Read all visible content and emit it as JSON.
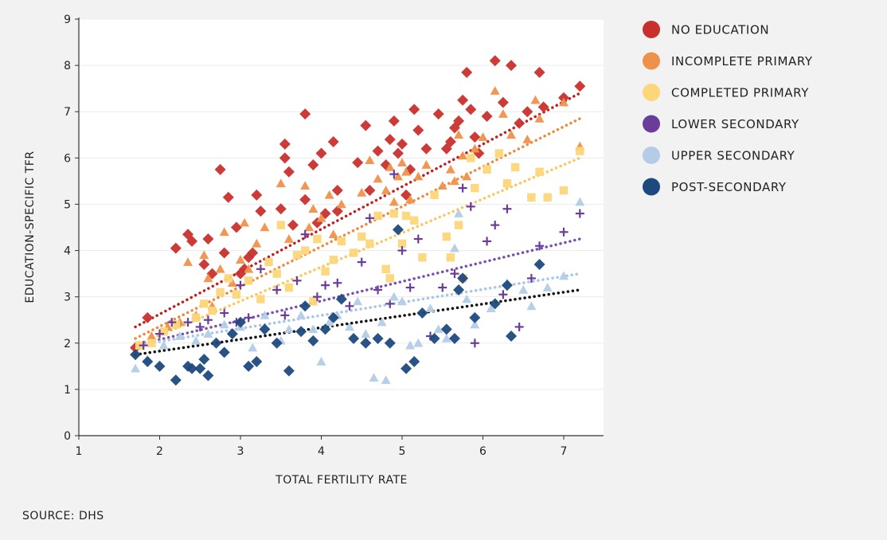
{
  "source_label": "SOURCE: DHS",
  "chart_data": {
    "type": "scatter",
    "title": "",
    "xlabel": "TOTAL FERTILITY RATE",
    "ylabel": "EDUCATION-SPECIFIC TFR",
    "xlim": [
      1,
      7.5
    ],
    "ylim": [
      0,
      9
    ],
    "xticks": [
      1,
      2,
      3,
      4,
      5,
      6,
      7
    ],
    "yticks": [
      0,
      1,
      2,
      3,
      4,
      5,
      6,
      7,
      8,
      9
    ],
    "legend_position": "right",
    "series": [
      {
        "name": "NO EDUCATION",
        "color": "#c9302c",
        "marker": "diamond",
        "trend": [
          [
            1.7,
            2.35
          ],
          [
            7.2,
            7.4
          ]
        ],
        "points": [
          [
            1.7,
            1.9
          ],
          [
            1.85,
            2.55
          ],
          [
            2.2,
            4.05
          ],
          [
            2.35,
            4.35
          ],
          [
            2.4,
            4.2
          ],
          [
            2.55,
            3.7
          ],
          [
            2.6,
            4.25
          ],
          [
            2.65,
            3.5
          ],
          [
            2.75,
            5.75
          ],
          [
            2.8,
            3.95
          ],
          [
            2.85,
            5.15
          ],
          [
            2.95,
            4.5
          ],
          [
            3.0,
            3.5
          ],
          [
            3.05,
            3.6
          ],
          [
            3.1,
            3.85
          ],
          [
            3.15,
            3.95
          ],
          [
            3.2,
            5.2
          ],
          [
            3.25,
            4.85
          ],
          [
            3.5,
            4.9
          ],
          [
            3.55,
            6.3
          ],
          [
            3.6,
            5.7
          ],
          [
            3.55,
            6.0
          ],
          [
            3.65,
            4.55
          ],
          [
            3.8,
            5.1
          ],
          [
            3.8,
            6.95
          ],
          [
            3.9,
            5.85
          ],
          [
            3.95,
            4.6
          ],
          [
            4.0,
            6.1
          ],
          [
            4.05,
            4.8
          ],
          [
            4.15,
            6.35
          ],
          [
            4.2,
            5.3
          ],
          [
            4.2,
            4.85
          ],
          [
            4.45,
            5.9
          ],
          [
            4.55,
            6.7
          ],
          [
            4.6,
            5.3
          ],
          [
            4.7,
            6.15
          ],
          [
            4.8,
            5.85
          ],
          [
            4.85,
            6.4
          ],
          [
            4.9,
            6.8
          ],
          [
            4.95,
            6.1
          ],
          [
            5.0,
            6.3
          ],
          [
            5.05,
            5.2
          ],
          [
            5.1,
            5.75
          ],
          [
            5.15,
            7.05
          ],
          [
            5.2,
            6.6
          ],
          [
            5.3,
            6.2
          ],
          [
            5.45,
            6.95
          ],
          [
            5.55,
            6.2
          ],
          [
            5.6,
            6.35
          ],
          [
            5.65,
            6.65
          ],
          [
            5.7,
            6.8
          ],
          [
            5.75,
            7.25
          ],
          [
            5.8,
            7.85
          ],
          [
            5.85,
            7.05
          ],
          [
            5.9,
            6.45
          ],
          [
            5.95,
            6.1
          ],
          [
            6.05,
            6.9
          ],
          [
            6.15,
            8.1
          ],
          [
            6.25,
            7.2
          ],
          [
            6.35,
            8.0
          ],
          [
            6.45,
            6.75
          ],
          [
            6.55,
            7.0
          ],
          [
            6.7,
            7.85
          ],
          [
            6.75,
            7.1
          ],
          [
            7.0,
            7.3
          ],
          [
            7.2,
            7.55
          ]
        ]
      },
      {
        "name": "INCOMPLETE PRIMARY",
        "color": "#f0914a",
        "marker": "triangle",
        "trend": [
          [
            1.7,
            2.1
          ],
          [
            7.2,
            6.85
          ]
        ],
        "points": [
          [
            1.75,
            1.95
          ],
          [
            1.9,
            2.15
          ],
          [
            2.1,
            2.35
          ],
          [
            2.25,
            2.45
          ],
          [
            2.35,
            3.75
          ],
          [
            2.45,
            2.6
          ],
          [
            2.55,
            3.9
          ],
          [
            2.6,
            3.4
          ],
          [
            2.65,
            2.8
          ],
          [
            2.75,
            3.6
          ],
          [
            2.8,
            4.4
          ],
          [
            2.9,
            3.3
          ],
          [
            3.0,
            3.8
          ],
          [
            3.05,
            4.6
          ],
          [
            3.1,
            3.6
          ],
          [
            3.2,
            4.15
          ],
          [
            3.3,
            4.5
          ],
          [
            3.5,
            5.45
          ],
          [
            3.6,
            4.25
          ],
          [
            3.8,
            5.4
          ],
          [
            3.85,
            4.5
          ],
          [
            3.9,
            4.9
          ],
          [
            4.0,
            4.7
          ],
          [
            4.1,
            5.2
          ],
          [
            4.15,
            4.35
          ],
          [
            4.25,
            5.0
          ],
          [
            4.5,
            5.25
          ],
          [
            4.6,
            5.95
          ],
          [
            4.7,
            5.55
          ],
          [
            4.8,
            5.3
          ],
          [
            4.85,
            5.8
          ],
          [
            4.9,
            5.05
          ],
          [
            4.95,
            5.6
          ],
          [
            5.0,
            5.9
          ],
          [
            5.05,
            5.7
          ],
          [
            5.1,
            5.1
          ],
          [
            5.2,
            5.6
          ],
          [
            5.3,
            5.85
          ],
          [
            5.5,
            5.4
          ],
          [
            5.6,
            5.75
          ],
          [
            5.65,
            5.5
          ],
          [
            5.7,
            6.5
          ],
          [
            5.75,
            6.05
          ],
          [
            5.8,
            5.6
          ],
          [
            5.9,
            6.2
          ],
          [
            6.0,
            6.45
          ],
          [
            6.15,
            7.45
          ],
          [
            6.25,
            6.95
          ],
          [
            6.35,
            6.5
          ],
          [
            6.55,
            6.4
          ],
          [
            6.65,
            7.25
          ],
          [
            6.7,
            6.85
          ],
          [
            7.0,
            7.2
          ],
          [
            7.2,
            6.25
          ]
        ]
      },
      {
        "name": "COMPLETED PRIMARY",
        "color": "#fcd679",
        "marker": "square",
        "trend": [
          [
            1.7,
            1.95
          ],
          [
            7.2,
            6.0
          ]
        ],
        "points": [
          [
            1.75,
            1.95
          ],
          [
            1.9,
            2.0
          ],
          [
            2.05,
            2.25
          ],
          [
            2.2,
            2.4
          ],
          [
            2.45,
            2.55
          ],
          [
            2.55,
            2.85
          ],
          [
            2.65,
            2.7
          ],
          [
            2.75,
            3.1
          ],
          [
            2.85,
            3.4
          ],
          [
            2.95,
            3.05
          ],
          [
            3.1,
            3.35
          ],
          [
            3.25,
            2.95
          ],
          [
            3.35,
            3.75
          ],
          [
            3.45,
            3.5
          ],
          [
            3.5,
            4.55
          ],
          [
            3.6,
            3.2
          ],
          [
            3.7,
            3.9
          ],
          [
            3.8,
            4.0
          ],
          [
            3.9,
            2.9
          ],
          [
            3.95,
            4.25
          ],
          [
            4.05,
            3.55
          ],
          [
            4.15,
            3.8
          ],
          [
            4.25,
            4.2
          ],
          [
            4.4,
            3.95
          ],
          [
            4.5,
            4.3
          ],
          [
            4.6,
            4.15
          ],
          [
            4.7,
            4.75
          ],
          [
            4.8,
            3.6
          ],
          [
            4.85,
            3.4
          ],
          [
            4.9,
            4.8
          ],
          [
            5.0,
            4.15
          ],
          [
            5.05,
            4.75
          ],
          [
            5.15,
            4.65
          ],
          [
            5.25,
            3.85
          ],
          [
            5.4,
            5.2
          ],
          [
            5.55,
            4.3
          ],
          [
            5.6,
            3.85
          ],
          [
            5.7,
            4.55
          ],
          [
            5.75,
            3.4
          ],
          [
            5.85,
            6.0
          ],
          [
            5.9,
            5.35
          ],
          [
            6.05,
            5.75
          ],
          [
            6.2,
            6.1
          ],
          [
            6.3,
            5.45
          ],
          [
            6.4,
            5.8
          ],
          [
            6.6,
            5.15
          ],
          [
            6.7,
            5.7
          ],
          [
            6.8,
            5.15
          ],
          [
            7.0,
            5.3
          ],
          [
            7.2,
            6.15
          ]
        ]
      },
      {
        "name": "LOWER SECONDARY",
        "color": "#6a3d9a",
        "marker": "plus",
        "trend": [
          [
            1.7,
            1.95
          ],
          [
            7.2,
            4.25
          ]
        ],
        "points": [
          [
            1.8,
            1.95
          ],
          [
            2.0,
            2.2
          ],
          [
            2.15,
            2.45
          ],
          [
            2.35,
            2.45
          ],
          [
            2.5,
            2.35
          ],
          [
            2.6,
            2.5
          ],
          [
            2.8,
            2.65
          ],
          [
            2.95,
            2.45
          ],
          [
            3.0,
            3.25
          ],
          [
            3.1,
            2.55
          ],
          [
            3.25,
            3.6
          ],
          [
            3.45,
            3.15
          ],
          [
            3.55,
            2.6
          ],
          [
            3.7,
            3.35
          ],
          [
            3.8,
            4.35
          ],
          [
            3.95,
            3.0
          ],
          [
            4.05,
            3.25
          ],
          [
            4.2,
            3.3
          ],
          [
            4.35,
            2.8
          ],
          [
            4.5,
            3.75
          ],
          [
            4.6,
            4.7
          ],
          [
            4.7,
            3.15
          ],
          [
            4.85,
            2.85
          ],
          [
            4.9,
            5.65
          ],
          [
            5.0,
            4.0
          ],
          [
            5.1,
            3.2
          ],
          [
            5.2,
            4.25
          ],
          [
            5.35,
            2.15
          ],
          [
            5.5,
            3.2
          ],
          [
            5.65,
            3.5
          ],
          [
            5.75,
            5.35
          ],
          [
            5.85,
            4.95
          ],
          [
            5.9,
            2.0
          ],
          [
            6.05,
            4.2
          ],
          [
            6.15,
            4.55
          ],
          [
            6.25,
            3.05
          ],
          [
            6.3,
            4.9
          ],
          [
            6.45,
            2.35
          ],
          [
            6.6,
            3.4
          ],
          [
            6.7,
            4.1
          ],
          [
            7.0,
            4.4
          ],
          [
            7.2,
            4.8
          ]
        ]
      },
      {
        "name": "UPPER SECONDARY",
        "color": "#b3cde6",
        "marker": "triangle",
        "trend": [
          [
            1.7,
            1.95
          ],
          [
            7.2,
            3.5
          ]
        ],
        "points": [
          [
            1.7,
            1.45
          ],
          [
            1.85,
            1.65
          ],
          [
            2.05,
            1.95
          ],
          [
            2.25,
            2.15
          ],
          [
            2.45,
            2.05
          ],
          [
            2.6,
            2.2
          ],
          [
            2.8,
            2.4
          ],
          [
            3.0,
            2.35
          ],
          [
            3.15,
            1.9
          ],
          [
            3.3,
            2.6
          ],
          [
            3.5,
            2.05
          ],
          [
            3.6,
            2.3
          ],
          [
            3.75,
            2.6
          ],
          [
            3.9,
            2.3
          ],
          [
            4.0,
            1.6
          ],
          [
            4.1,
            2.45
          ],
          [
            4.2,
            2.6
          ],
          [
            4.35,
            2.35
          ],
          [
            4.45,
            2.9
          ],
          [
            4.55,
            2.2
          ],
          [
            4.65,
            1.25
          ],
          [
            4.75,
            2.45
          ],
          [
            4.8,
            1.2
          ],
          [
            4.9,
            3.0
          ],
          [
            5.0,
            2.9
          ],
          [
            5.1,
            1.95
          ],
          [
            5.2,
            2.0
          ],
          [
            5.35,
            2.75
          ],
          [
            5.45,
            2.3
          ],
          [
            5.55,
            2.1
          ],
          [
            5.65,
            4.05
          ],
          [
            5.7,
            4.8
          ],
          [
            5.8,
            2.95
          ],
          [
            5.9,
            2.4
          ],
          [
            6.1,
            2.75
          ],
          [
            6.3,
            3.3
          ],
          [
            6.5,
            3.15
          ],
          [
            6.6,
            2.8
          ],
          [
            6.8,
            3.2
          ],
          [
            7.0,
            3.45
          ],
          [
            7.2,
            5.05
          ]
        ]
      },
      {
        "name": "POST-SECONDARY",
        "color": "#1d4a7e",
        "marker": "diamond",
        "trend": [
          [
            1.7,
            1.75
          ],
          [
            7.2,
            3.15
          ]
        ],
        "points": [
          [
            1.7,
            1.75
          ],
          [
            1.85,
            1.6
          ],
          [
            2.0,
            1.5
          ],
          [
            2.2,
            1.2
          ],
          [
            2.35,
            1.5
          ],
          [
            2.4,
            1.45
          ],
          [
            2.5,
            1.45
          ],
          [
            2.55,
            1.65
          ],
          [
            2.6,
            1.3
          ],
          [
            2.7,
            2.0
          ],
          [
            2.8,
            1.8
          ],
          [
            2.9,
            2.2
          ],
          [
            3.0,
            2.45
          ],
          [
            3.1,
            1.5
          ],
          [
            3.2,
            1.6
          ],
          [
            3.3,
            2.3
          ],
          [
            3.45,
            2.0
          ],
          [
            3.6,
            1.4
          ],
          [
            3.75,
            2.25
          ],
          [
            3.8,
            2.8
          ],
          [
            3.9,
            2.05
          ],
          [
            4.05,
            2.3
          ],
          [
            4.15,
            2.55
          ],
          [
            4.25,
            2.95
          ],
          [
            4.4,
            2.1
          ],
          [
            4.55,
            2.0
          ],
          [
            4.7,
            2.1
          ],
          [
            4.85,
            2.0
          ],
          [
            4.95,
            4.45
          ],
          [
            5.05,
            1.45
          ],
          [
            5.15,
            1.6
          ],
          [
            5.25,
            2.65
          ],
          [
            5.4,
            2.1
          ],
          [
            5.55,
            2.3
          ],
          [
            5.65,
            2.1
          ],
          [
            5.7,
            3.15
          ],
          [
            5.75,
            3.4
          ],
          [
            5.9,
            2.55
          ],
          [
            6.15,
            2.85
          ],
          [
            6.3,
            3.25
          ],
          [
            6.35,
            2.15
          ],
          [
            6.7,
            3.7
          ]
        ]
      }
    ]
  }
}
